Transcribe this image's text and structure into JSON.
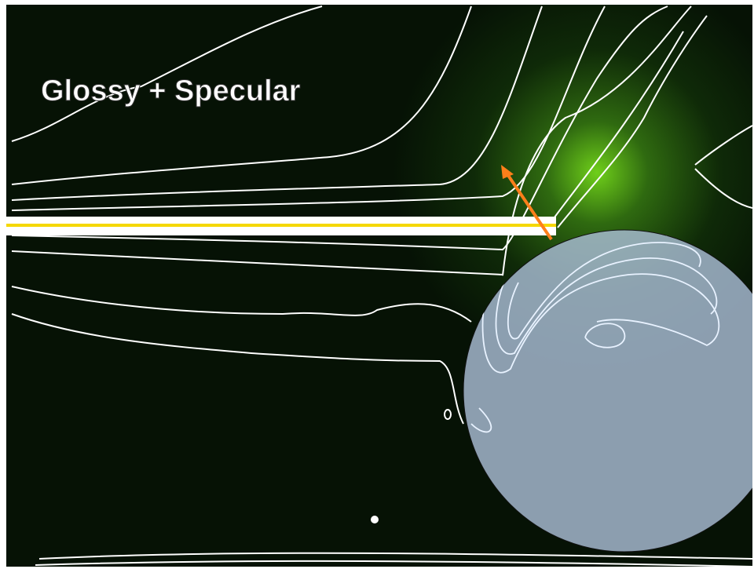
{
  "title": "Glossy + Specular"
}
